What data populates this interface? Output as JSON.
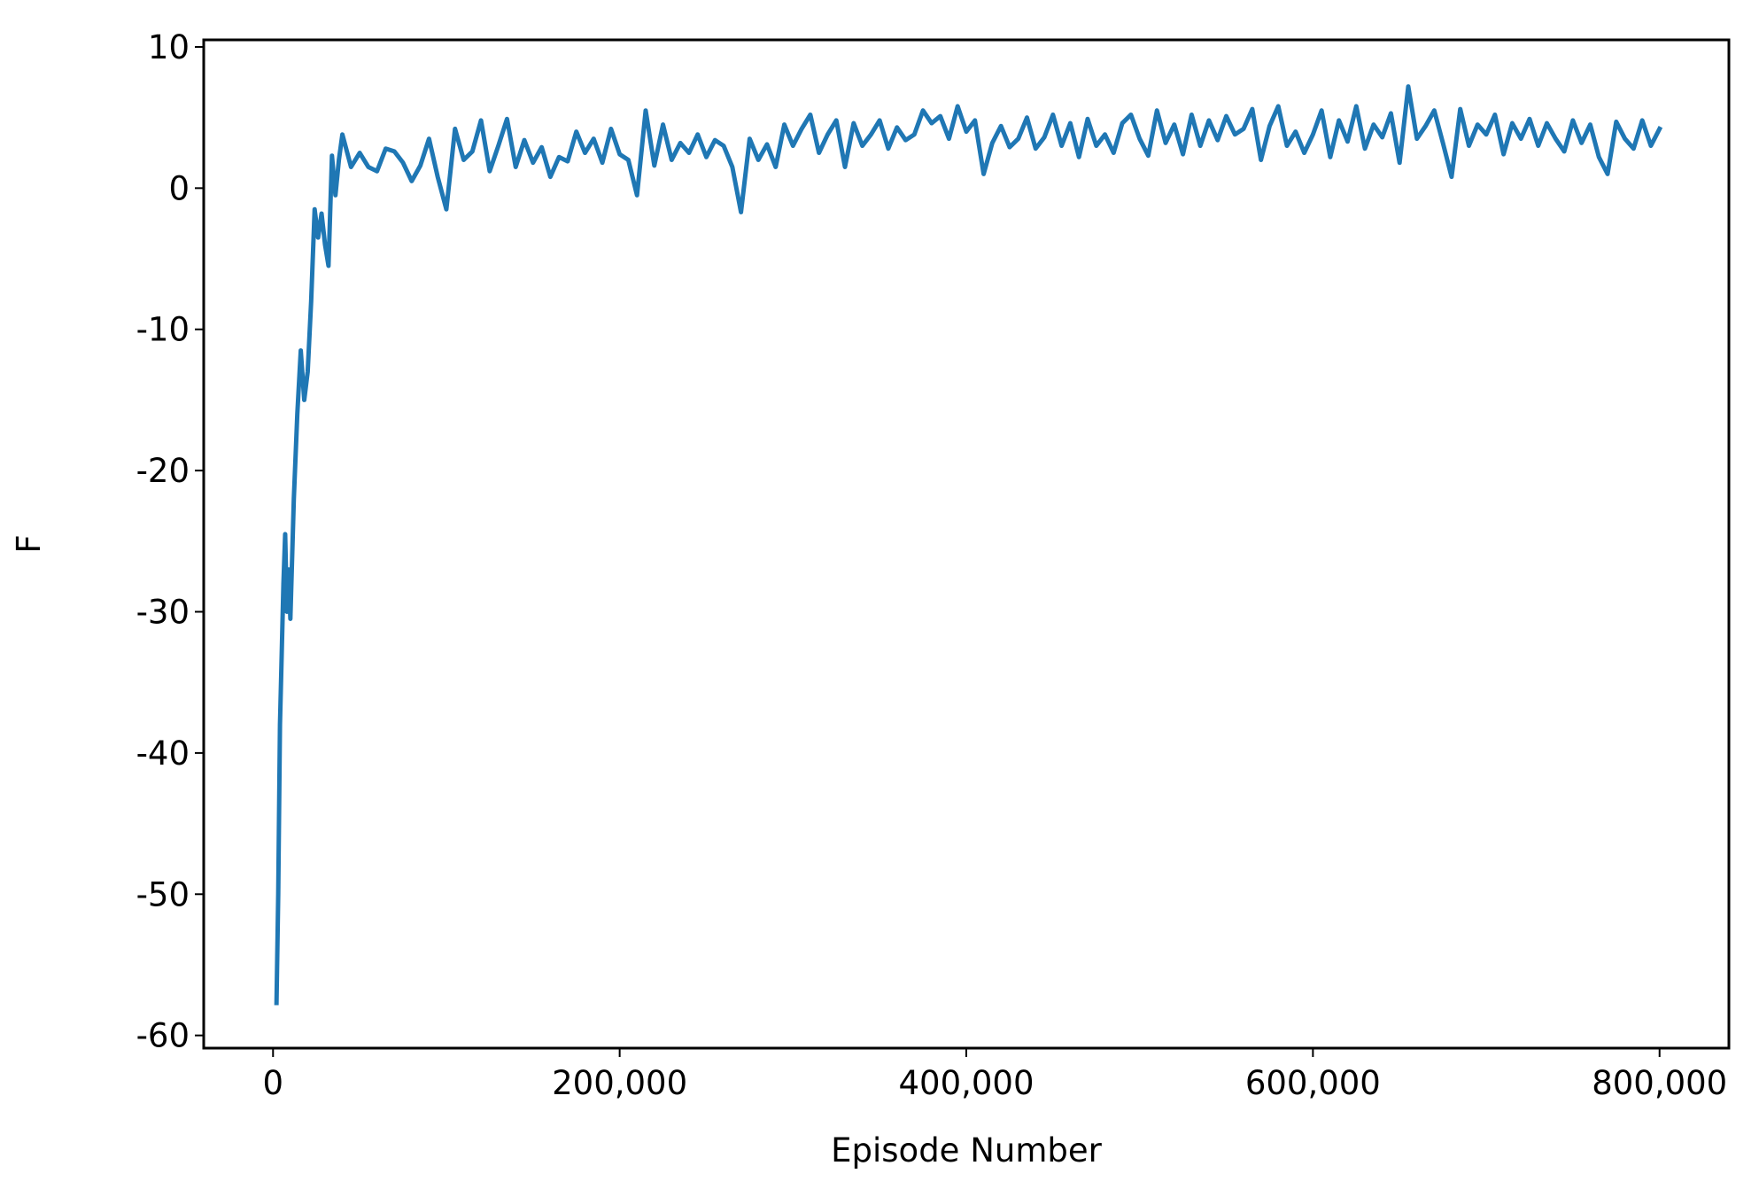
{
  "chart_data": {
    "type": "line",
    "x_label": "Episode Number",
    "y_label": "F",
    "xlim": [
      -40000,
      840000
    ],
    "ylim": [
      -60.9,
      10.5
    ],
    "xticks": [
      0,
      {
        "value": 200000,
        "label": "200,000"
      },
      {
        "value": 400000,
        "label": "400,000"
      },
      {
        "value": 600000,
        "label": "600,000"
      },
      {
        "value": 800000,
        "label": "800,000"
      }
    ],
    "yticks": [
      -60,
      -50,
      -40,
      -30,
      -20,
      -10,
      0,
      10
    ],
    "grid": false,
    "series": [
      {
        "color": "#1f77b4",
        "x": [
          2000,
          3000,
          4000,
          5000,
          6000,
          7000,
          8000,
          9000,
          10000,
          12000,
          14000,
          16000,
          18000,
          20000,
          22000,
          24000,
          26000,
          28000,
          30000,
          32000,
          34000,
          36000,
          38000,
          40000,
          45000,
          50000,
          55000,
          60000,
          65000,
          70000,
          75000,
          80000,
          85000,
          90000,
          95000,
          100000,
          105000,
          110000,
          115000,
          120000,
          125000,
          130000,
          135000,
          140000,
          145000,
          150000,
          155000,
          160000,
          165000,
          170000,
          175000,
          180000,
          185000,
          190000,
          195000,
          200000,
          205000,
          210000,
          215000,
          220000,
          225000,
          230000,
          235000,
          240000,
          245000,
          250000,
          255000,
          260000,
          265000,
          270000,
          275000,
          280000,
          285000,
          290000,
          295000,
          300000,
          305000,
          310000,
          315000,
          320000,
          325000,
          330000,
          335000,
          340000,
          345000,
          350000,
          355000,
          360000,
          365000,
          370000,
          375000,
          380000,
          385000,
          390000,
          395000,
          400000,
          405000,
          410000,
          415000,
          420000,
          425000,
          430000,
          435000,
          440000,
          445000,
          450000,
          455000,
          460000,
          465000,
          470000,
          475000,
          480000,
          485000,
          490000,
          495000,
          500000,
          505000,
          510000,
          515000,
          520000,
          525000,
          530000,
          535000,
          540000,
          545000,
          550000,
          555000,
          560000,
          565000,
          570000,
          575000,
          580000,
          585000,
          590000,
          595000,
          600000,
          605000,
          610000,
          615000,
          620000,
          625000,
          630000,
          635000,
          640000,
          645000,
          650000,
          655000,
          660000,
          665000,
          670000,
          675000,
          680000,
          685000,
          690000,
          695000,
          700000,
          705000,
          710000,
          715000,
          720000,
          725000,
          730000,
          735000,
          740000,
          745000,
          750000,
          755000,
          760000,
          765000,
          770000,
          775000,
          780000,
          785000,
          790000,
          795000,
          800000
        ],
        "values": [
          -57.7,
          -50,
          -38,
          -33,
          -28,
          -24.5,
          -30,
          -27,
          -30.5,
          -22,
          -16,
          -11.5,
          -15,
          -13,
          -8,
          -1.5,
          -3.5,
          -1.8,
          -4,
          -5.5,
          2.3,
          -0.5,
          2,
          3.8,
          1.5,
          2.5,
          1.5,
          1.2,
          2.8,
          2.6,
          1.8,
          0.5,
          1.6,
          3.5,
          0.8,
          -1.5,
          4.2,
          2.0,
          2.6,
          4.8,
          1.2,
          3.0,
          4.9,
          1.5,
          3.4,
          1.8,
          2.9,
          0.8,
          2.2,
          1.9,
          4.0,
          2.5,
          3.5,
          1.8,
          4.2,
          2.4,
          2.0,
          -0.5,
          5.5,
          1.6,
          4.5,
          2.0,
          3.2,
          2.5,
          3.8,
          2.2,
          3.4,
          3.0,
          1.5,
          -1.7,
          3.5,
          2.0,
          3.1,
          1.5,
          4.5,
          3.0,
          4.2,
          5.2,
          2.5,
          3.8,
          4.8,
          1.5,
          4.6,
          3.0,
          3.8,
          4.8,
          2.8,
          4.3,
          3.4,
          3.8,
          5.5,
          4.6,
          5.1,
          3.5,
          5.8,
          4.0,
          4.8,
          1.0,
          3.2,
          4.4,
          2.9,
          3.5,
          5.0,
          2.8,
          3.6,
          5.2,
          3.0,
          4.6,
          2.2,
          4.9,
          3.0,
          3.8,
          2.5,
          4.6,
          5.2,
          3.5,
          2.3,
          5.5,
          3.2,
          4.5,
          2.4,
          5.2,
          3.0,
          4.8,
          3.4,
          5.1,
          3.8,
          4.2,
          5.6,
          2.0,
          4.4,
          5.8,
          3.0,
          4.0,
          2.5,
          3.8,
          5.5,
          2.2,
          4.8,
          3.3,
          5.8,
          2.8,
          4.5,
          3.6,
          5.3,
          1.8,
          7.2,
          3.5,
          4.4,
          5.5,
          3.2,
          0.8,
          5.6,
          3.0,
          4.5,
          3.8,
          5.2,
          2.4,
          4.6,
          3.5,
          4.9,
          3.0,
          4.6,
          3.5,
          2.6,
          4.8,
          3.2,
          4.5,
          2.2,
          1.0,
          4.7,
          3.5,
          2.8,
          4.8,
          3.0,
          4.2
        ]
      }
    ]
  }
}
